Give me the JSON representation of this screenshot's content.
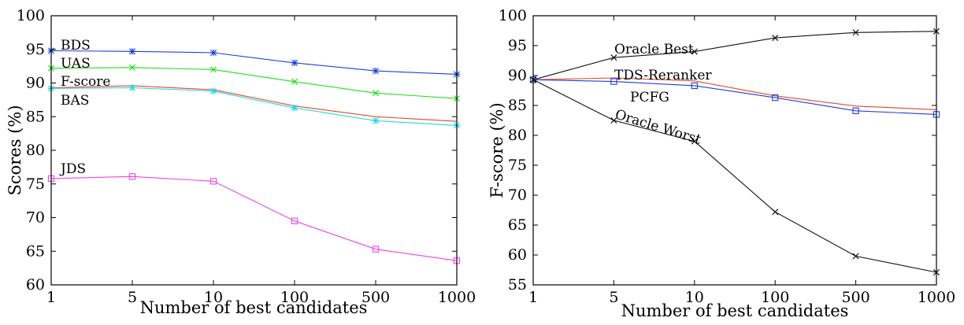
{
  "chart_data": [
    {
      "type": "line",
      "xlabel": "Number of best candidates",
      "ylabel": "Scores (%)",
      "categories": [
        "1",
        "5",
        "10",
        "100",
        "500",
        "1000"
      ],
      "ylim": [
        60,
        100
      ],
      "yticks": [
        60,
        65,
        70,
        75,
        80,
        85,
        90,
        95,
        100
      ],
      "grid": false,
      "legend": "inline labels",
      "series": [
        {
          "name": "BDS",
          "color": "#1f3fd8",
          "marker": "star",
          "values": [
            94.8,
            94.7,
            94.5,
            93.0,
            91.8,
            91.3
          ]
        },
        {
          "name": "UAS",
          "color": "#22dd22",
          "marker": "x",
          "values": [
            92.2,
            92.3,
            92.0,
            90.2,
            88.5,
            87.7
          ]
        },
        {
          "name": "F-score",
          "color": "#e04a2a",
          "marker": "none",
          "values": [
            89.3,
            89.6,
            89.0,
            86.6,
            85.0,
            84.3
          ]
        },
        {
          "name": "BAS",
          "color": "#22d8e0",
          "marker": "star",
          "values": [
            89.2,
            89.3,
            88.8,
            86.3,
            84.4,
            83.7
          ]
        },
        {
          "name": "JDS",
          "color": "#ee44ee",
          "marker": "square",
          "values": [
            75.8,
            76.1,
            75.4,
            69.5,
            65.3,
            63.6
          ]
        }
      ]
    },
    {
      "type": "line",
      "xlabel": "Number of best candidates",
      "ylabel": "F-score (%)",
      "categories": [
        "1",
        "5",
        "10",
        "100",
        "500",
        "1000"
      ],
      "ylim": [
        55,
        100
      ],
      "yticks": [
        55,
        60,
        65,
        70,
        75,
        80,
        85,
        90,
        95,
        100
      ],
      "grid": false,
      "legend": "inline labels",
      "series": [
        {
          "name": "Oracle Best",
          "color": "#111111",
          "marker": "x",
          "values": [
            89.3,
            93.0,
            94.0,
            96.3,
            97.2,
            97.4
          ]
        },
        {
          "name": "TDS-Reranker",
          "color": "#e04a2a",
          "marker": "none",
          "values": [
            89.3,
            89.6,
            89.1,
            86.6,
            84.9,
            84.3
          ]
        },
        {
          "name": "PCFG",
          "color": "#1f3fd8",
          "marker": "square",
          "values": [
            89.3,
            89.0,
            88.3,
            86.3,
            84.1,
            83.5
          ]
        },
        {
          "name": "Oracle Worst",
          "color": "#111111",
          "marker": "x",
          "values": [
            89.3,
            82.5,
            79.0,
            67.2,
            59.8,
            57.1
          ]
        }
      ]
    }
  ]
}
